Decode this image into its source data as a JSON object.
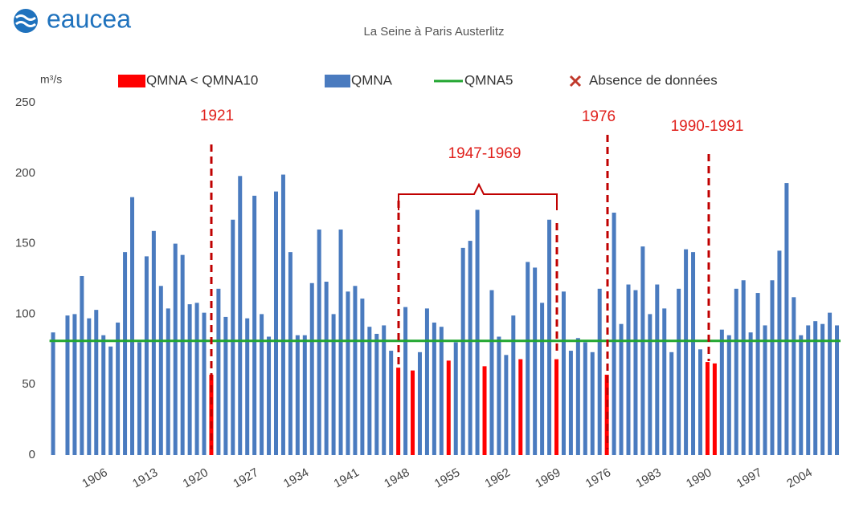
{
  "logo": "eaucea",
  "chart_data": {
    "type": "bar",
    "title": "La Seine à Paris Austerlitz",
    "y_label": "m³/s",
    "x": [
      1899,
      1900,
      1901,
      1902,
      1903,
      1904,
      1905,
      1906,
      1907,
      1908,
      1909,
      1910,
      1911,
      1912,
      1913,
      1914,
      1915,
      1916,
      1917,
      1918,
      1919,
      1920,
      1921,
      1922,
      1923,
      1924,
      1925,
      1926,
      1927,
      1928,
      1929,
      1930,
      1931,
      1932,
      1933,
      1934,
      1935,
      1936,
      1937,
      1938,
      1939,
      1940,
      1941,
      1942,
      1943,
      1944,
      1945,
      1946,
      1947,
      1948,
      1949,
      1950,
      1951,
      1952,
      1953,
      1954,
      1955,
      1956,
      1957,
      1958,
      1959,
      1960,
      1961,
      1962,
      1963,
      1964,
      1965,
      1966,
      1967,
      1968,
      1969,
      1970,
      1971,
      1972,
      1973,
      1974,
      1975,
      1976,
      1977,
      1978,
      1979,
      1980,
      1981,
      1982,
      1983,
      1984,
      1985,
      1986,
      1987,
      1988,
      1989,
      1990,
      1991,
      1992,
      1993,
      1994,
      1995,
      1996,
      1997,
      1998,
      1999,
      2000,
      2001,
      2002,
      2003,
      2004,
      2005,
      2006,
      2007,
      2008
    ],
    "xlim": [
      1898.5,
      2008.5
    ],
    "xticks": [
      1906,
      1913,
      1920,
      1927,
      1934,
      1941,
      1948,
      1955,
      1962,
      1969,
      1976,
      1983,
      1990,
      1997,
      2004
    ],
    "ylim": [
      0,
      250
    ],
    "yticks": [
      0,
      50,
      100,
      150,
      200,
      250
    ],
    "series": [
      {
        "name": "QMNA < QMNA10",
        "color": "#ff0000",
        "values": [
          null,
          null,
          null,
          null,
          null,
          null,
          null,
          null,
          null,
          null,
          null,
          null,
          null,
          null,
          null,
          null,
          null,
          null,
          null,
          null,
          null,
          null,
          57,
          null,
          null,
          null,
          null,
          null,
          null,
          null,
          null,
          null,
          null,
          null,
          null,
          null,
          null,
          null,
          null,
          null,
          null,
          null,
          null,
          null,
          null,
          null,
          null,
          null,
          62,
          null,
          60,
          null,
          null,
          null,
          null,
          67,
          null,
          null,
          null,
          null,
          63,
          null,
          null,
          null,
          null,
          68,
          null,
          null,
          null,
          null,
          68,
          null,
          null,
          null,
          null,
          null,
          null,
          57,
          null,
          null,
          null,
          null,
          null,
          null,
          null,
          null,
          null,
          null,
          null,
          null,
          null,
          66,
          65,
          null,
          null,
          null,
          null,
          null,
          null,
          null,
          null,
          null,
          null,
          null,
          null,
          null,
          null,
          null,
          null,
          null
        ]
      },
      {
        "name": "QMNA",
        "color": "#4a7bbf",
        "values": [
          87,
          null,
          99,
          100,
          127,
          97,
          103,
          85,
          77,
          94,
          144,
          183,
          80,
          141,
          159,
          120,
          104,
          150,
          142,
          107,
          108,
          101,
          null,
          118,
          98,
          167,
          198,
          97,
          184,
          100,
          84,
          187,
          199,
          144,
          85,
          85,
          122,
          160,
          123,
          100,
          160,
          116,
          120,
          111,
          91,
          86,
          92,
          74,
          null,
          105,
          null,
          73,
          104,
          94,
          91,
          null,
          80,
          147,
          152,
          174,
          null,
          117,
          84,
          71,
          99,
          null,
          137,
          133,
          108,
          167,
          null,
          116,
          74,
          83,
          80,
          73,
          118,
          null,
          172,
          93,
          121,
          117,
          148,
          100,
          121,
          104,
          73,
          118,
          146,
          144,
          75,
          null,
          null,
          89,
          85,
          118,
          124,
          87,
          115,
          92,
          124,
          145,
          193,
          112,
          85,
          92,
          95,
          93,
          101,
          92
        ]
      }
    ],
    "reference_lines": [
      {
        "name": "QMNA5",
        "value": 81,
        "color": "#22a630"
      }
    ],
    "missing_marker": {
      "name": "Absence de données",
      "color": "#c0392b"
    },
    "annotations": [
      "1921",
      "1947-1969",
      "1976",
      "1990-1991"
    ]
  }
}
